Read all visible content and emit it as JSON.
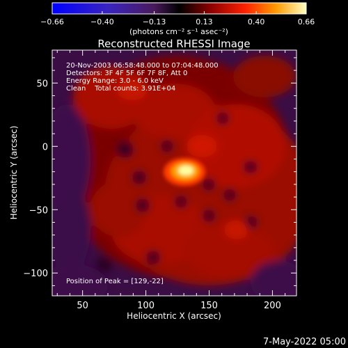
{
  "chart_data": {
    "type": "heatmap",
    "title": "Reconstructed RHESSI Image",
    "xlabel": "Heliocentric X (arcsec)",
    "ylabel": "Heliocentric Y (arcsec)",
    "xlim": [
      26,
      219
    ],
    "ylim": [
      -118,
      76
    ],
    "xticks": [
      "50",
      "100",
      "150",
      "200"
    ],
    "xtick_values": [
      50,
      100,
      150,
      200
    ],
    "yticks": [
      "50",
      "0",
      "−50",
      "−100"
    ],
    "ytick_values": [
      50,
      0,
      -50,
      -100
    ],
    "colorbar": {
      "ticks": [
        "−0.66",
        "−0.40",
        "−0.13",
        "0.13",
        "0.40",
        "0.66"
      ],
      "tick_values": [
        -0.66,
        -0.4,
        -0.13,
        0.13,
        0.4,
        0.66
      ],
      "range": [
        -0.66,
        0.66
      ],
      "label": "(photons cm⁻² s⁻¹ asec⁻²)"
    },
    "peak": {
      "x": 129,
      "y": -22,
      "value": 0.66
    },
    "annotations": [
      "20-Nov-2003 06:58:48.000 to 07:04:48.000",
      "Detectors: 3F 4F 5F 6F 7F 8F, Att 0",
      "Energy Range: 3.0 - 6.0 keV",
      "Clean    Total counts: 3.91E+04",
      "Position of Peak = [129,-22]"
    ]
  },
  "footer": {
    "date": "7-May-2022 05:00"
  }
}
